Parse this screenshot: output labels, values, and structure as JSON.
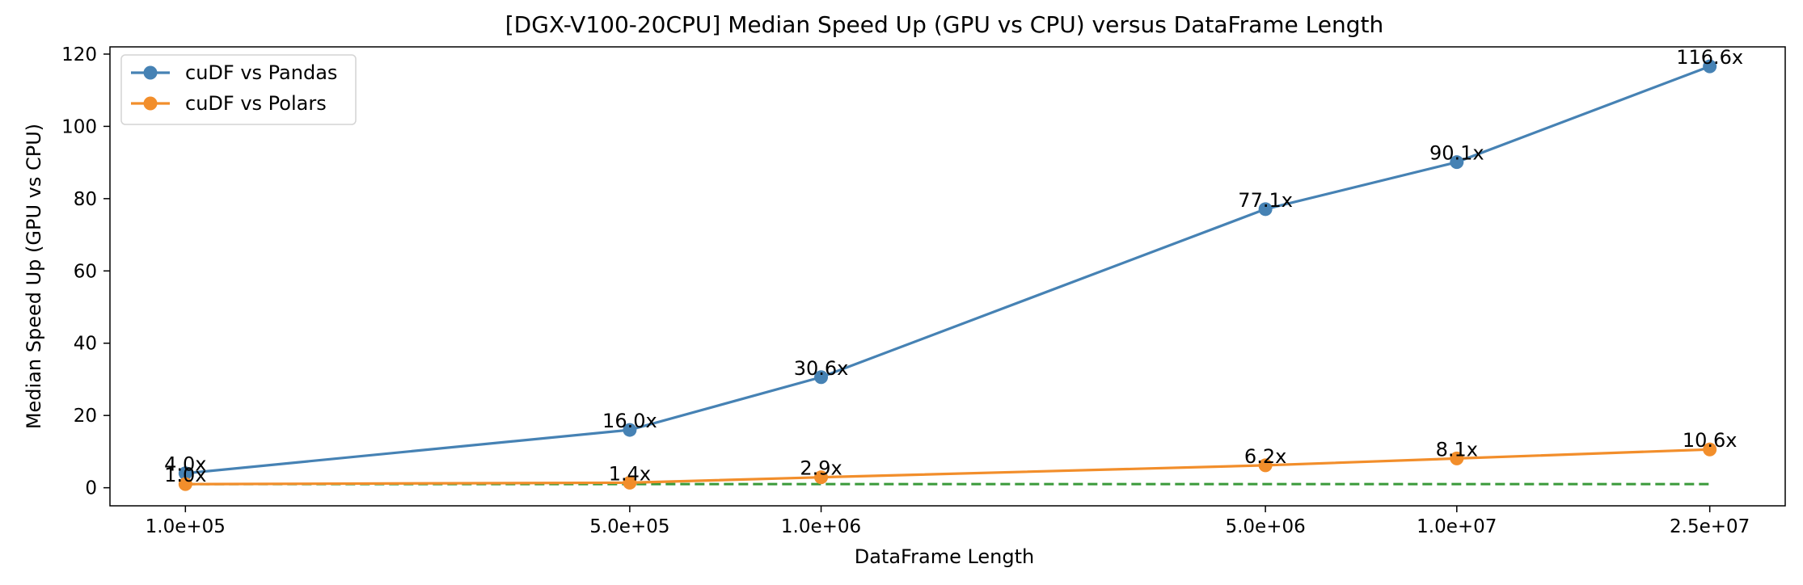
{
  "chart_data": {
    "type": "line",
    "title": "[DGX-V100-20CPU] Median Speed Up (GPU vs CPU) versus DataFrame Length",
    "xlabel": "DataFrame Length",
    "ylabel": "Median Speed Up (GPU vs CPU)",
    "x_scale": "log",
    "x": [
      100000,
      500000,
      1000000,
      5000000,
      10000000,
      25000000
    ],
    "x_tick_labels": [
      "1.0e+05",
      "5.0e+05",
      "1.0e+06",
      "5.0e+06",
      "1.0e+07",
      "2.5e+07"
    ],
    "ylim": [
      -5,
      122
    ],
    "y_ticks": [
      0,
      20,
      40,
      60,
      80,
      100,
      120
    ],
    "grid": false,
    "legend_position": "top-left",
    "series": [
      {
        "name": "cuDF vs Pandas",
        "color": "#4682b4",
        "marker": "circle",
        "values": [
          4.0,
          16.0,
          30.6,
          77.1,
          90.1,
          116.6
        ],
        "labels": [
          "4.0x",
          "16.0x",
          "30.6x",
          "77.1x",
          "90.1x",
          "116.6x"
        ]
      },
      {
        "name": "cuDF vs Polars",
        "color": "#f28e2b",
        "marker": "circle",
        "values": [
          1.0,
          1.4,
          2.9,
          6.2,
          8.1,
          10.6
        ],
        "labels": [
          "1.0x",
          "1.4x",
          "2.9x",
          "6.2x",
          "8.1x",
          "10.6x"
        ]
      }
    ],
    "reference_line": {
      "y": 1,
      "style": "dashed",
      "color": "#3a9a3a"
    }
  }
}
